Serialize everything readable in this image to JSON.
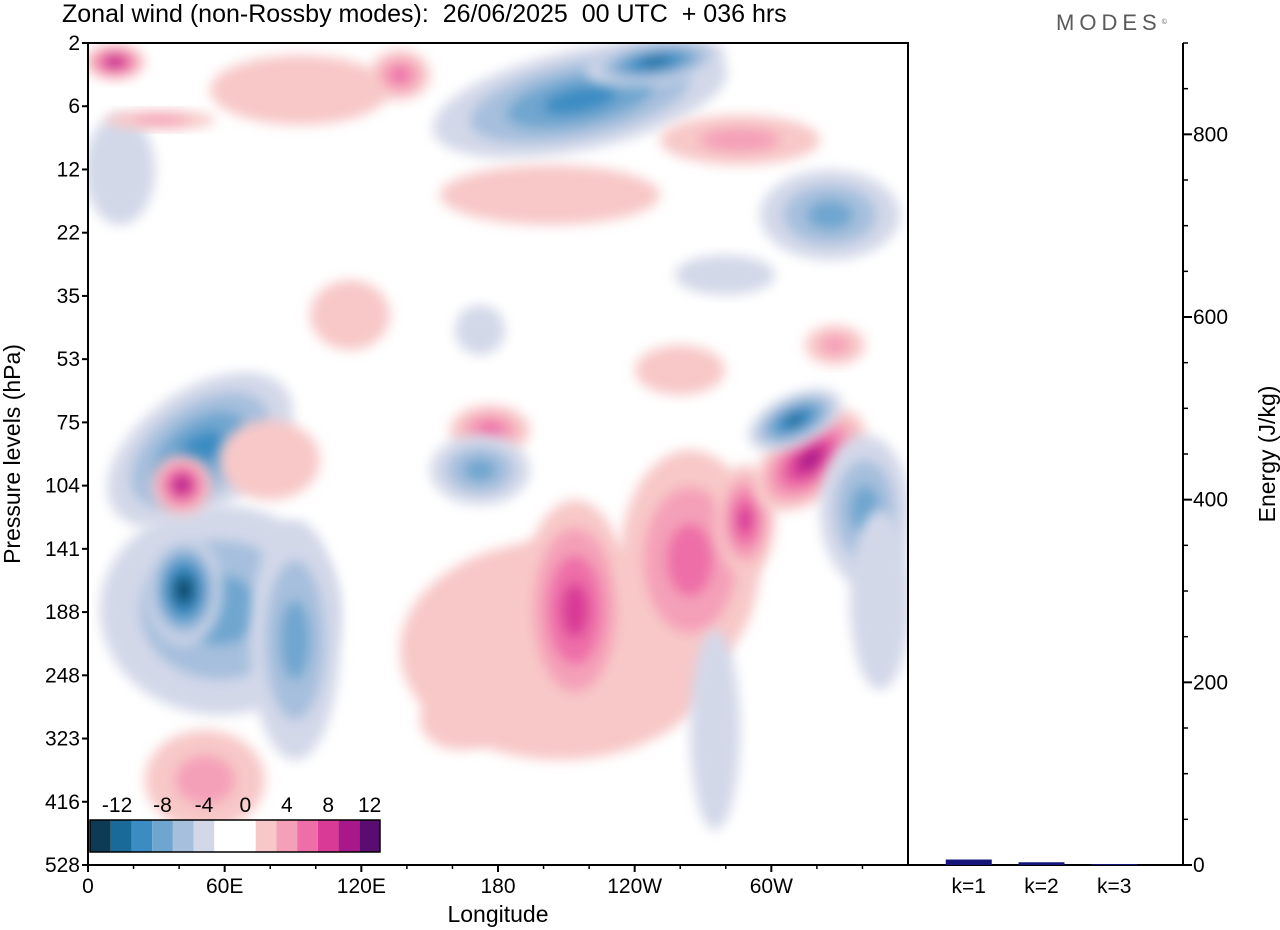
{
  "title": "Zonal wind (non-Rossby modes):  26/06/2025  00 UTC  + 036 hrs",
  "logo": {
    "text": "MODES",
    "mark": "©"
  },
  "chart_data": [
    {
      "type": "heatmap",
      "variable": "Zonal wind (non-Rossby modes)",
      "xlabel": "Longitude",
      "ylabel": "Pressure levels (hPa)",
      "x_ticks": [
        "0",
        "60E",
        "120E",
        "180",
        "120W",
        "60W"
      ],
      "x_tick_degrees": [
        0,
        60,
        120,
        180,
        240,
        300
      ],
      "xlim": [
        0,
        360
      ],
      "y_ticks": [
        "2",
        "6",
        "12",
        "22",
        "35",
        "53",
        "75",
        "104",
        "141",
        "188",
        "248",
        "323",
        "416",
        "528"
      ],
      "y_reversed": true,
      "colorbar": {
        "labels": [
          "-12",
          "-8",
          "-4",
          "0",
          "4",
          "8",
          "12"
        ],
        "levels": [
          -14,
          -12,
          -10,
          -8,
          -6,
          -4,
          -2,
          0,
          2,
          4,
          6,
          8,
          10,
          12,
          14
        ],
        "colors": [
          "#0f3a55",
          "#1a6a99",
          "#3a8cc3",
          "#6fa6cf",
          "#a6bfdd",
          "#d3d8e9",
          "#ffffff",
          "#ffffff",
          "#f8c8c8",
          "#f4a0b8",
          "#ee6ea8",
          "#d83a96",
          "#a8188a",
          "#5a0d70"
        ]
      },
      "features": [
        {
          "name": "upper-stratosphere-easterly-jet",
          "lon": 220,
          "level": "2-6",
          "value": -10
        },
        {
          "name": "negative-core-60E",
          "lon": 40,
          "level": "141-248",
          "value": -13
        },
        {
          "name": "positive-core-60E",
          "lon": 40,
          "level": "104",
          "value": 8
        },
        {
          "name": "positive-core-150W",
          "lon": 205,
          "level": "141-248",
          "value": 8
        },
        {
          "name": "positive-core-80W",
          "lon": 290,
          "level": "104",
          "value": 8
        },
        {
          "name": "positive-core-0",
          "lon": 8,
          "level": "2",
          "value": 10
        }
      ]
    },
    {
      "type": "bar",
      "ylabel": "Energy (J/kg)",
      "categories": [
        "k=1",
        "k=2",
        "k=3"
      ],
      "values": [
        6,
        3,
        1
      ],
      "ylim": [
        0,
        900
      ],
      "y_ticks": [
        0,
        200,
        400,
        600,
        800
      ],
      "bar_color": "#14147a"
    }
  ]
}
